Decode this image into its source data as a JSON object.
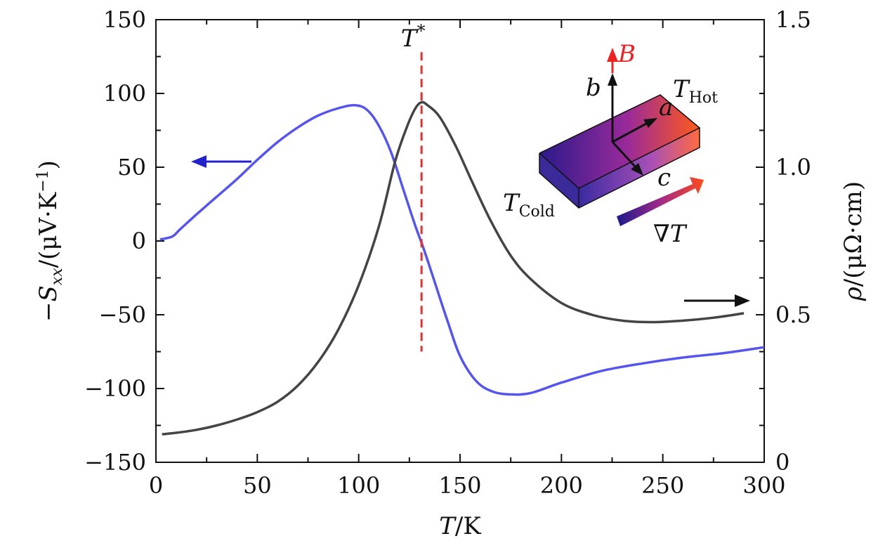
{
  "chart_data": {
    "type": "line",
    "title": "",
    "xlabel": "T/K",
    "ylabel_left": "−S_xx/(μV·K⁻¹)",
    "ylabel_right": "ρ/(μΩ·cm)",
    "xlim": [
      0,
      300
    ],
    "ylim_left": [
      -150,
      150
    ],
    "ylim_right": [
      0,
      1.5
    ],
    "x_ticks": [
      "0",
      "50",
      "100",
      "150",
      "200",
      "250",
      "300"
    ],
    "y_left_ticks": [
      "150",
      "100",
      "50",
      "0",
      "−50",
      "−100",
      "−150"
    ],
    "y_right_ticks": [
      "1.5",
      "1.0",
      "0.5",
      "0"
    ],
    "grid": false,
    "series": [
      {
        "axis": "left",
        "color": "#5555ee",
        "x": [
          2,
          8,
          12,
          20,
          30,
          40,
          50,
          60,
          70,
          80,
          90,
          98,
          104,
          110,
          116,
          122,
          128,
          132,
          138,
          144,
          150,
          158,
          166,
          175,
          185,
          200,
          220,
          240,
          260,
          280,
          300
        ],
        "y": [
          1,
          3,
          8,
          18,
          30,
          42,
          55,
          67,
          77,
          85,
          90,
          92,
          89,
          78,
          60,
          35,
          10,
          -5,
          -30,
          -55,
          -78,
          -95,
          -102,
          -104,
          -103,
          -96,
          -88,
          -83,
          -79,
          -76,
          -72
        ]
      },
      {
        "axis": "right",
        "color": "#444444",
        "x": [
          3,
          10,
          20,
          30,
          40,
          50,
          60,
          70,
          80,
          90,
          100,
          110,
          118,
          124,
          128,
          131,
          134,
          140,
          148,
          156,
          165,
          175,
          185,
          200,
          215,
          230,
          245,
          260,
          275,
          290
        ],
        "y": [
          0.095,
          0.1,
          0.11,
          0.125,
          0.145,
          0.17,
          0.205,
          0.26,
          0.34,
          0.45,
          0.6,
          0.8,
          1.02,
          1.14,
          1.2,
          1.22,
          1.21,
          1.17,
          1.07,
          0.95,
          0.82,
          0.7,
          0.62,
          0.54,
          0.5,
          0.48,
          0.475,
          0.48,
          0.49,
          0.505
        ]
      }
    ],
    "marker_line": {
      "x": 131,
      "label": "T",
      "sup": "*",
      "color": "#dd3333"
    },
    "arrows": [
      {
        "direction": "left",
        "axis": "left",
        "color": "#2222cc"
      },
      {
        "direction": "right",
        "axis": "right",
        "color": "#111111"
      }
    ],
    "inset": {
      "labels": {
        "B": "B",
        "b": "b",
        "a": "a",
        "c": "c",
        "T_hot_main": "T",
        "T_hot_sub": "Hot",
        "T_cold_main": "T",
        "T_cold_sub": "Cold",
        "grad": "∇T"
      },
      "colors": {
        "cold": "#2a1a8a",
        "mid": "#9a2a9a",
        "hot": "#ff5a1a",
        "B_arrow": "#ee2222"
      }
    }
  }
}
